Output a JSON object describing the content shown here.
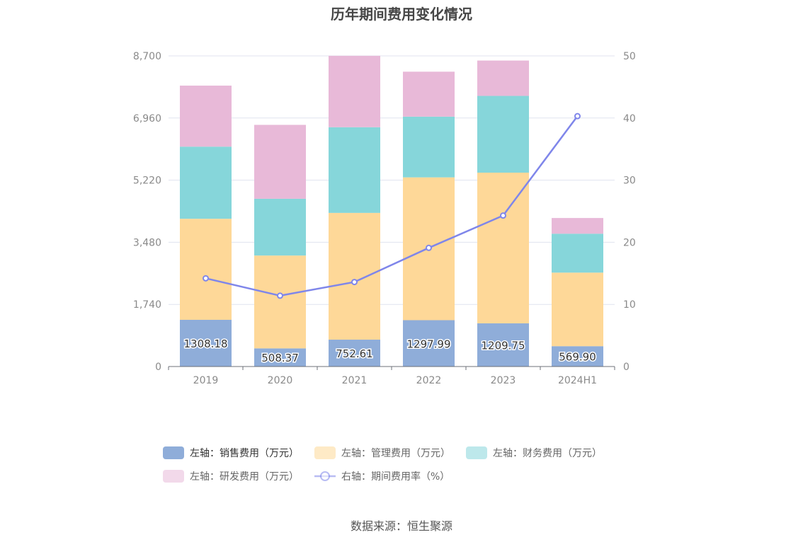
{
  "title": "历年期间费用变化情况",
  "source": "数据来源：恒生聚源",
  "chart_data": {
    "type": "bar",
    "stacked": true,
    "categories": [
      "2019",
      "2020",
      "2021",
      "2022",
      "2023",
      "2024H1"
    ],
    "left_axis": {
      "min": 0,
      "max": 8700,
      "ticks": [
        "0",
        "1,740",
        "3,480",
        "5,220",
        "6,960",
        "8,700"
      ]
    },
    "right_axis": {
      "min": 0,
      "max": 50,
      "ticks": [
        "0",
        "10",
        "20",
        "30",
        "40",
        "50"
      ]
    },
    "grid": true,
    "legend_position": "bottom",
    "series": [
      {
        "name": "左轴：销售费用（万元）",
        "color": "#8fadd9",
        "axis": "left",
        "values": [
          1308.18,
          508.37,
          752.61,
          1297.99,
          1209.75,
          569.9
        ],
        "labels": [
          "1308.18",
          "508.37",
          "752.61",
          "1297.99",
          "1209.75",
          "569.90"
        ]
      },
      {
        "name": "左轴：管理费用（万元）",
        "color": "#fed898",
        "axis": "left",
        "values": [
          2830,
          2600,
          3550,
          4000,
          4220,
          2060
        ]
      },
      {
        "name": "左轴：财务费用（万元）",
        "color": "#86d6da",
        "axis": "left",
        "values": [
          2020,
          1590,
          2400,
          1700,
          2150,
          1090
        ]
      },
      {
        "name": "左轴：研发费用（万元）",
        "color": "#e8b9d8",
        "axis": "left",
        "values": [
          1710,
          2070,
          2000,
          1260,
          990,
          440
        ]
      },
      {
        "name": "右轴：期间费用率（%）",
        "color": "#7f86ea",
        "axis": "right",
        "type": "line",
        "values": [
          14.2,
          11.4,
          13.6,
          19.1,
          24.3,
          40.3
        ]
      }
    ]
  }
}
